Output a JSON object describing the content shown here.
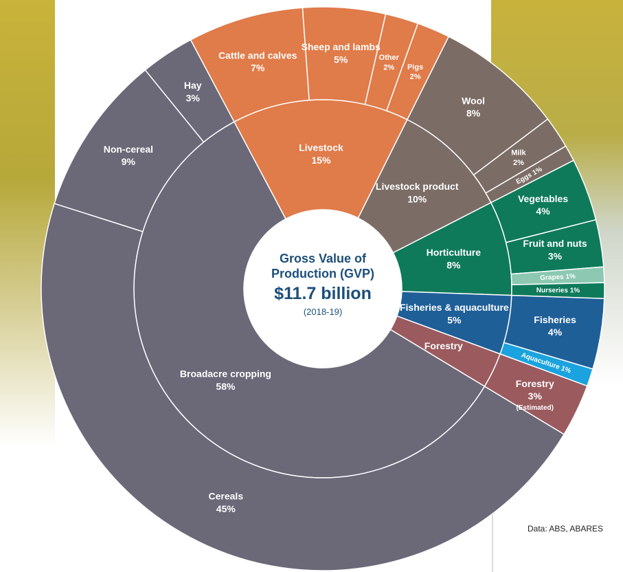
{
  "chart_data": {
    "type": "sunburst",
    "title": "Gross Value of Production (GVP)",
    "center_value": "$11.7 billion",
    "subtitle": "(2018-19)",
    "source": "Data: ABS, ABARES",
    "groups": [
      {
        "name": "Livestock",
        "value": 15,
        "value_label": "15%",
        "color": "#e07b4a",
        "children": [
          {
            "name": "Cattle and calves",
            "value": 7,
            "value_label": "7%"
          },
          {
            "name": "Sheep and lambs",
            "value": 5,
            "value_label": "5%"
          },
          {
            "name": "Other",
            "value": 2,
            "value_label": "2%"
          },
          {
            "name": "Pigs",
            "value": 2,
            "value_label": "2%"
          }
        ]
      },
      {
        "name": "Livestock product",
        "value": 10,
        "value_label": "10%",
        "color": "#7b6d66",
        "children": [
          {
            "name": "Wool",
            "value": 8,
            "value_label": "8%"
          },
          {
            "name": "Milk",
            "value": 2,
            "value_label": "2%"
          },
          {
            "name": "Eggs",
            "value": 1,
            "value_label": "1%"
          }
        ]
      },
      {
        "name": "Horticulture",
        "value": 8,
        "value_label": "8%",
        "color": "#0e7a5a",
        "children": [
          {
            "name": "Vegetables",
            "value": 4,
            "value_label": "4%"
          },
          {
            "name": "Fruit and nuts",
            "value": 3,
            "value_label": "3%"
          },
          {
            "name": "Grapes",
            "value": 1,
            "value_label": "1%",
            "color": "#8cc8b2"
          },
          {
            "name": "Nurseries",
            "value": 1,
            "value_label": "1%"
          }
        ]
      },
      {
        "name": "Fisheries & aquaculture",
        "value": 5,
        "value_label": "5%",
        "color": "#1f5f98",
        "children": [
          {
            "name": "Fisheries",
            "value": 4,
            "value_label": "4%"
          },
          {
            "name": "Aquaculture",
            "value": 1,
            "value_label": "1%",
            "color": "#1aa3de"
          }
        ]
      },
      {
        "name": "Forestry",
        "value": 3,
        "color": "#9a5a5e",
        "children": [
          {
            "name": "Forestry",
            "value": 3,
            "value_label": "3%",
            "note": "(Estimated)"
          }
        ]
      },
      {
        "name": "Broadacre cropping",
        "value": 58,
        "value_label": "58%",
        "color": "#6b6878",
        "children": [
          {
            "name": "Cereals",
            "value": 45,
            "value_label": "45%"
          },
          {
            "name": "Non-cereal",
            "value": 9,
            "value_label": "9%"
          },
          {
            "name": "Hay",
            "value": 3,
            "value_label": "3%"
          }
        ]
      }
    ]
  }
}
